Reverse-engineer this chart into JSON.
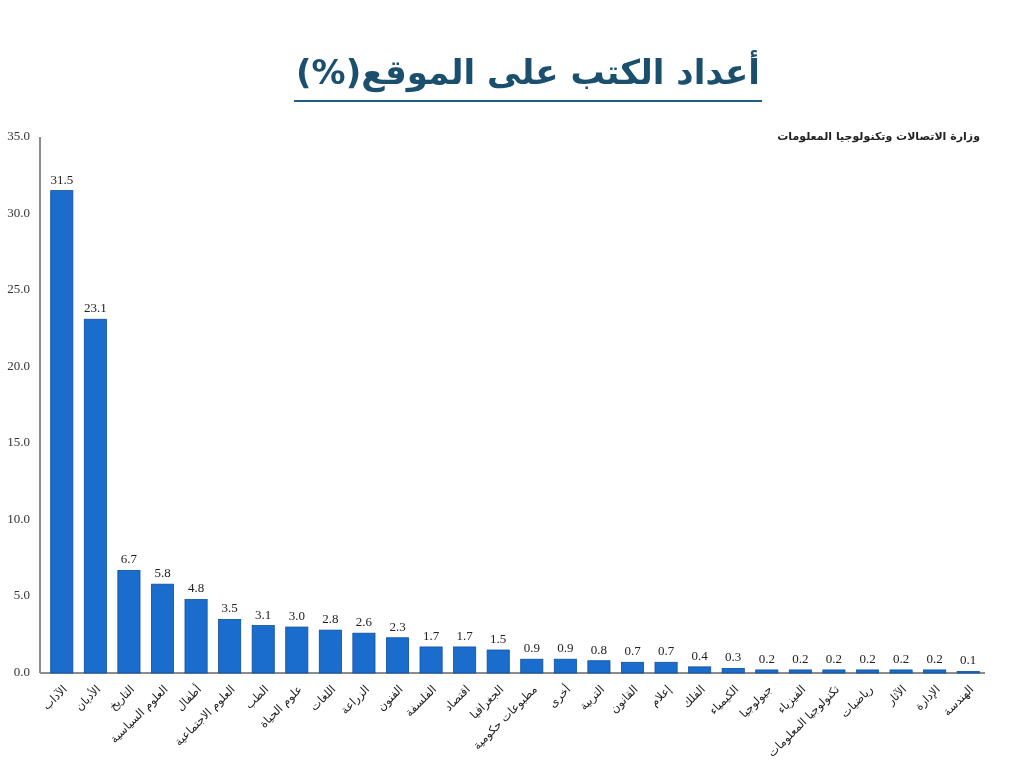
{
  "chart_data": {
    "type": "bar",
    "title": "أعداد الكتب على الموقع(%)",
    "categories": [
      "الآداب",
      "الأديان",
      "التاريخ",
      "العلوم السياسية",
      "أطفال",
      "العلوم الاجتماعية",
      "الطب",
      "علوم الحياة",
      "اللغات",
      "الزراعة",
      "الفنون",
      "الفلسفة",
      "اقتصاد",
      "الجغرافيا",
      "مطبوعات حكومية",
      "أخرى",
      "التربية",
      "القانون",
      "إعلام",
      "الفلك",
      "الكيمياء",
      "جيولوجيا",
      "الفيزياء",
      "تكنولوجيا المعلومات",
      "رياضيات",
      "الآثار",
      "الإدارة",
      "الهندسة"
    ],
    "values": [
      31.5,
      23.1,
      6.7,
      5.8,
      4.8,
      3.5,
      3.1,
      3.0,
      2.8,
      2.6,
      2.3,
      1.7,
      1.7,
      1.5,
      0.9,
      0.9,
      0.8,
      0.7,
      0.7,
      0.4,
      0.3,
      0.2,
      0.2,
      0.2,
      0.2,
      0.2,
      0.2,
      0.1
    ],
    "value_labels": [
      "31.5",
      "23.1",
      "6.7",
      "5.8",
      "4.8",
      "3.5",
      "3.1",
      "3.0",
      "2.8",
      "2.6",
      "2.3",
      "1.7",
      "1.7",
      "1.5",
      "0.9",
      "0.9",
      "0.8",
      "0.7",
      "0.7",
      "0.4",
      "0.3",
      "0.2",
      "0.2",
      "0.2",
      "0.2",
      "0.2",
      "0.2",
      "0.1"
    ],
    "color": "#1a6dcc",
    "ylim": [
      0,
      35
    ],
    "yticks": [
      {
        "value": 0,
        "label": "0.0"
      },
      {
        "value": 5,
        "label": "5.0"
      },
      {
        "value": 10,
        "label": "10.0"
      },
      {
        "value": 15,
        "label": "15.0"
      },
      {
        "value": 20,
        "label": "20.0"
      },
      {
        "value": 25,
        "label": "25.0"
      },
      {
        "value": 30,
        "label": "30.0"
      },
      {
        "value": 35,
        "label": "35.0"
      }
    ],
    "annotations": [
      "وزارة الاتصالات وتكنولوجيا المعلومات"
    ]
  }
}
